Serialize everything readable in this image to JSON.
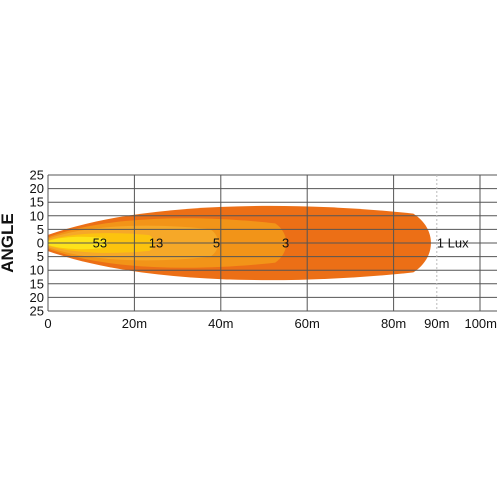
{
  "chart_data": {
    "type": "area",
    "title": "",
    "xlabel": "",
    "ylabel": "ANGLE",
    "xlim": [
      0,
      100
    ],
    "ylim": [
      -25,
      25
    ],
    "x_ticks": [
      {
        "value": 0,
        "label": "0"
      },
      {
        "value": 20,
        "label": "20m"
      },
      {
        "value": 40,
        "label": "40m"
      },
      {
        "value": 60,
        "label": "60m"
      },
      {
        "value": 80,
        "label": "80m"
      },
      {
        "value": 90,
        "label": "90m"
      },
      {
        "value": 100,
        "label": "100m"
      }
    ],
    "y_ticks": [
      {
        "value": 25,
        "label": "25"
      },
      {
        "value": 20,
        "label": "20"
      },
      {
        "value": 15,
        "label": "15"
      },
      {
        "value": 10,
        "label": "10"
      },
      {
        "value": 5,
        "label": "5"
      },
      {
        "value": 0,
        "label": "0"
      },
      {
        "value": -5,
        "label": "5"
      },
      {
        "value": -10,
        "label": "10"
      },
      {
        "value": -15,
        "label": "15"
      },
      {
        "value": -20,
        "label": "20"
      },
      {
        "value": -25,
        "label": "25"
      }
    ],
    "grid": true,
    "series": [
      {
        "name": "1 Lux",
        "reach": 90,
        "half_angle": 15,
        "color": "#ec6f16",
        "label": "1 Lux",
        "label_x": 90
      },
      {
        "name": "3",
        "reach": 56,
        "half_angle": 10,
        "color": "#f29418",
        "label": "3",
        "label_x": 55
      },
      {
        "name": "5",
        "reach": 40,
        "half_angle": 7,
        "color": "#f6a828",
        "label": "5",
        "label_x": 39
      },
      {
        "name": "13",
        "reach": 25,
        "half_angle": 4,
        "color": "#fcc30e",
        "label": "13",
        "label_x": 25
      },
      {
        "name": "53",
        "reach": 14,
        "half_angle": 2.5,
        "color": "#fde31a",
        "label": "53",
        "label_x": 12
      }
    ]
  }
}
